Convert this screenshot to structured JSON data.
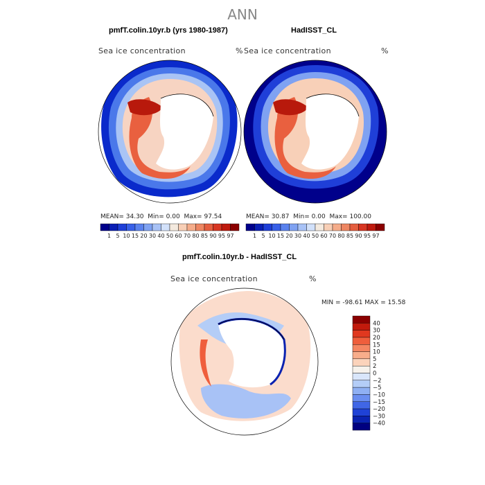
{
  "title": "ANN",
  "panels": {
    "model": {
      "title": "pmfT.colin.10yr.b (yrs 1980-1987)",
      "field_label": "Sea ice concentration",
      "units": "%",
      "stats": {
        "mean_label": "MEAN=",
        "mean": "34.30",
        "min_label": "Min=",
        "min": "0.00",
        "max_label": "Max=",
        "max": "97.54"
      }
    },
    "obs": {
      "title": "HadISST_CL",
      "field_label": "Sea ice concentration",
      "units": "%",
      "stats": {
        "mean_label": "MEAN=",
        "mean": "30.87",
        "min_label": "Min=",
        "min": "0.00",
        "max_label": "Max=",
        "max": "100.00"
      }
    },
    "diff": {
      "title": "pmfT.colin.10yr.b - HadISST_CL",
      "field_label": "Sea ice concentration",
      "units": "%",
      "range_text": "MIN = -98.61  MAX =  15.58"
    }
  },
  "colorbar_abs": {
    "labels": [
      "1",
      "5",
      "10",
      "15",
      "20",
      "30",
      "40",
      "50",
      "60",
      "70",
      "80",
      "85",
      "90",
      "95",
      "97"
    ],
    "colors": [
      "#00008b",
      "#0a1fb5",
      "#1f3fd8",
      "#3860e8",
      "#5a82ee",
      "#7fa2f2",
      "#a8c2f6",
      "#d2e1fa",
      "#f4eadf",
      "#f8cfb6",
      "#f5ac8a",
      "#ee8662",
      "#e55e3f",
      "#d83622",
      "#bf1a0e",
      "#8b0000"
    ]
  },
  "colorbar_diff": {
    "labels": [
      "40",
      "30",
      "20",
      "15",
      "10",
      "5",
      "2",
      "0",
      "−2",
      "−5",
      "−10",
      "−15",
      "−20",
      "−30",
      "−40"
    ],
    "colors": [
      "#8b0000",
      "#c21a0c",
      "#e0381f",
      "#ef5e3c",
      "#f58662",
      "#f8ad8b",
      "#fbd3bb",
      "#f6f2ec",
      "#d9e6fb",
      "#b4cdf7",
      "#8fb0f3",
      "#6a8ef0",
      "#4066e6",
      "#1f42d6",
      "#0a22b0",
      "#000080"
    ]
  },
  "map_data": {
    "type": "polar_stereographic",
    "region": "Antarctica / Southern Ocean",
    "variable": "Sea ice concentration",
    "season": "ANN"
  }
}
